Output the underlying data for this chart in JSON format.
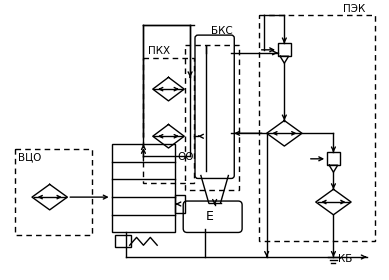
{
  "background": "#ffffff",
  "lc": "#000000",
  "lw": 1.0,
  "labels": {
    "PKH": "ПКХ",
    "BKS": "БКС",
    "PEK": "ПЭК",
    "VCO": "ВЦО",
    "OO": "ОО",
    "E": "Е",
    "KB": "КБ"
  },
  "figsize": [
    3.89,
    2.8
  ],
  "dpi": 100
}
